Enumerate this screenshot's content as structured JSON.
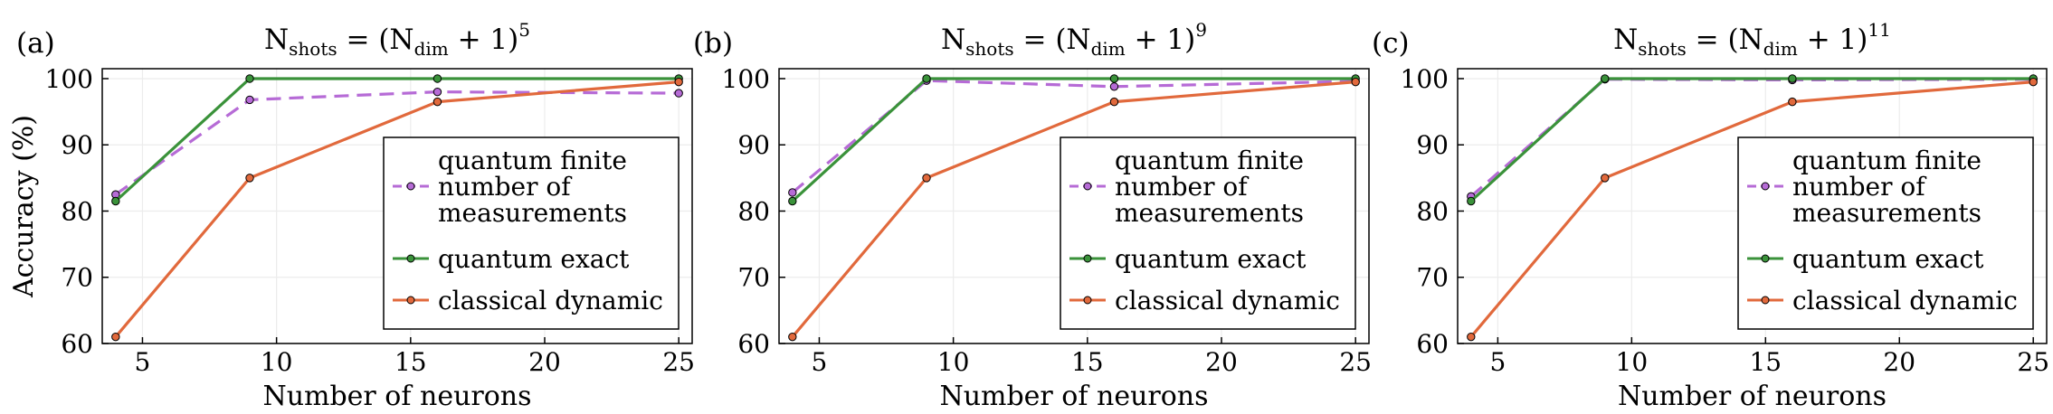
{
  "chart_data": [
    {
      "type": "line",
      "panel_label": "(a)",
      "title": {
        "base": "N",
        "base_sub": "shots",
        "mid": " = (N",
        "mid_sub": "dim",
        "tail": " + 1)",
        "exp": "5"
      },
      "xlabel": "Number of neurons",
      "ylabel": "Accuracy (%)",
      "xlim": [
        3.5,
        25.5
      ],
      "ylim": [
        60,
        101.5
      ],
      "xticks": [
        5,
        10,
        15,
        20,
        25
      ],
      "yticks": [
        60,
        70,
        80,
        90,
        100
      ],
      "grid": true,
      "legend_position": "bottom-right",
      "series": [
        {
          "name": "quantum finite number of measurements",
          "name_lines": [
            "quantum finite",
            "number of",
            "measurements"
          ],
          "color": "#b66bd6",
          "dash": true,
          "x": [
            4,
            9,
            16,
            25
          ],
          "values": [
            82.5,
            96.8,
            98.0,
            97.8
          ]
        },
        {
          "name": "quantum exact",
          "name_lines": [
            "quantum exact"
          ],
          "color": "#3a923a",
          "dash": false,
          "x": [
            4,
            9,
            16,
            25
          ],
          "values": [
            81.5,
            100,
            100,
            100
          ]
        },
        {
          "name": "classical dynamic",
          "name_lines": [
            "classical dynamic"
          ],
          "color": "#e1693c",
          "dash": false,
          "x": [
            4,
            9,
            16,
            25
          ],
          "values": [
            61.0,
            85.0,
            96.5,
            99.5
          ]
        }
      ]
    },
    {
      "type": "line",
      "panel_label": "(b)",
      "title": {
        "base": "N",
        "base_sub": "shots",
        "mid": " = (N",
        "mid_sub": "dim",
        "tail": " + 1)",
        "exp": "9"
      },
      "xlabel": "Number of neurons",
      "ylabel": "",
      "xlim": [
        3.5,
        25.5
      ],
      "ylim": [
        60,
        101.5
      ],
      "xticks": [
        5,
        10,
        15,
        20,
        25
      ],
      "yticks": [
        60,
        70,
        80,
        90,
        100
      ],
      "grid": true,
      "legend_position": "bottom-right",
      "series": [
        {
          "name": "quantum finite number of measurements",
          "name_lines": [
            "quantum finite",
            "number of",
            "measurements"
          ],
          "color": "#b66bd6",
          "dash": true,
          "x": [
            4,
            9,
            16,
            25
          ],
          "values": [
            82.8,
            99.7,
            98.8,
            99.6
          ]
        },
        {
          "name": "quantum exact",
          "name_lines": [
            "quantum exact"
          ],
          "color": "#3a923a",
          "dash": false,
          "x": [
            4,
            9,
            16,
            25
          ],
          "values": [
            81.5,
            100,
            100,
            100
          ]
        },
        {
          "name": "classical dynamic",
          "name_lines": [
            "classical dynamic"
          ],
          "color": "#e1693c",
          "dash": false,
          "x": [
            4,
            9,
            16,
            25
          ],
          "values": [
            61.0,
            85.0,
            96.5,
            99.5
          ]
        }
      ]
    },
    {
      "type": "line",
      "panel_label": "(c)",
      "title": {
        "base": "N",
        "base_sub": "shots",
        "mid": " = (N",
        "mid_sub": "dim",
        "tail": " + 1)",
        "exp": "11"
      },
      "xlabel": "Number of neurons",
      "ylabel": "",
      "xlim": [
        3.5,
        25.5
      ],
      "ylim": [
        60,
        101.5
      ],
      "xticks": [
        5,
        10,
        15,
        20,
        25
      ],
      "yticks": [
        60,
        70,
        80,
        90,
        100
      ],
      "grid": true,
      "legend_position": "bottom-right",
      "series": [
        {
          "name": "quantum finite number of measurements",
          "name_lines": [
            "quantum finite",
            "number of",
            "measurements"
          ],
          "color": "#b66bd6",
          "dash": true,
          "x": [
            4,
            9,
            16,
            25
          ],
          "values": [
            82.2,
            99.9,
            99.8,
            99.9
          ]
        },
        {
          "name": "quantum exact",
          "name_lines": [
            "quantum exact"
          ],
          "color": "#3a923a",
          "dash": false,
          "x": [
            4,
            9,
            16,
            25
          ],
          "values": [
            81.5,
            100,
            100,
            100
          ]
        },
        {
          "name": "classical dynamic",
          "name_lines": [
            "classical dynamic"
          ],
          "color": "#e1693c",
          "dash": false,
          "x": [
            4,
            9,
            16,
            25
          ],
          "values": [
            61.0,
            85.0,
            96.5,
            99.5
          ]
        }
      ]
    }
  ]
}
